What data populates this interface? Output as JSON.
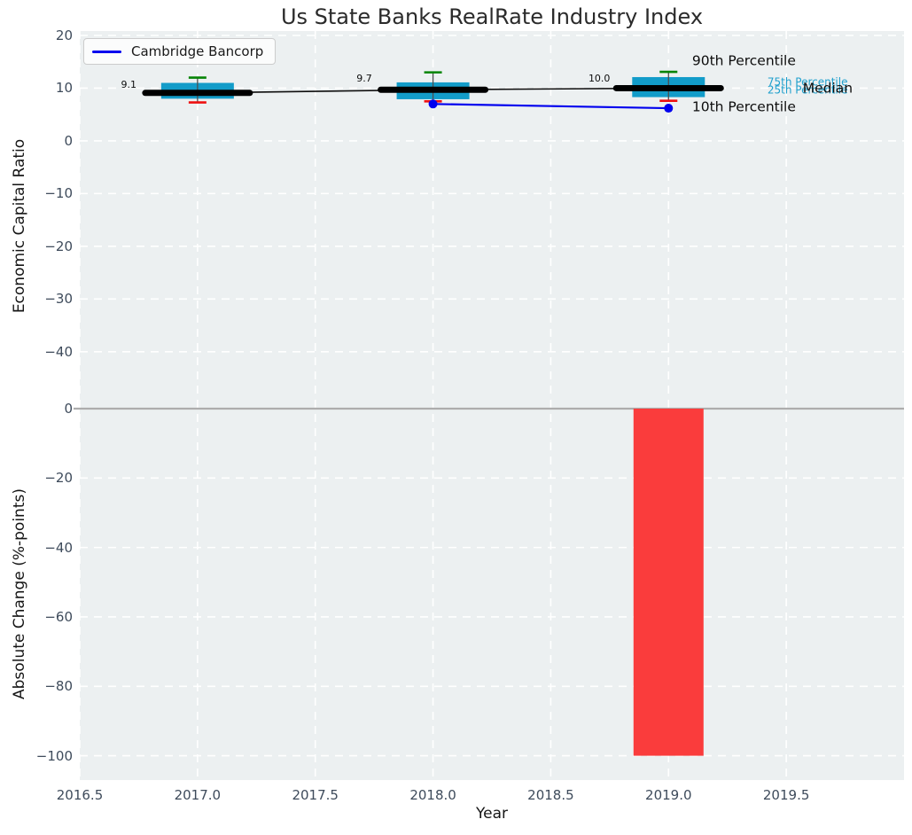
{
  "title": "Us State Banks RealRate Industry Index",
  "legend": {
    "label": "Cambridge Bancorp",
    "line_color": "#0000ee"
  },
  "colors": {
    "plot_bg": "#ecf0f1",
    "grid": "#ffffff",
    "tick_label": "#3e4b5b",
    "box_fill": "#129cc9",
    "p90_cap": "#068406",
    "p10_cap": "#ee1111",
    "median": "#000000",
    "series_line": "#0000ee",
    "bar_fill": "#fa3c3c",
    "zero_line": "#adadad",
    "annotation_black": "#0d0d0d",
    "annotation_cyan": "#1fa0cd"
  },
  "chart_data": {
    "type": "boxplot+line over bar, shared x-axis",
    "x_axis": {
      "label": "Year",
      "lim": [
        2016.5,
        2020.0
      ],
      "tick_values": [
        2016.5,
        2017.0,
        2017.5,
        2018.0,
        2018.5,
        2019.0,
        2019.5
      ],
      "tick_labels": [
        "2016.5",
        "2017.0",
        "2017.5",
        "2018.0",
        "2018.5",
        "2019.0",
        "2019.5"
      ],
      "grid": "white dashed"
    },
    "top": {
      "type": "boxplot+line",
      "ylabel": "Economic Capital Ratio",
      "ylim": [
        -50.8,
        20.84
      ],
      "ytick_values": [
        20,
        10,
        0,
        -10,
        -20,
        -30,
        -40
      ],
      "ytick_labels": [
        "20",
        "10",
        "0",
        "−10",
        "−20",
        "−30",
        "−40"
      ],
      "boxes": [
        {
          "x": 2017,
          "p10": 7.3,
          "p25": 8.0,
          "median": 9.1,
          "p75": 11.0,
          "p90": 12.0
        },
        {
          "x": 2018,
          "p10": 7.5,
          "p25": 7.9,
          "median": 9.7,
          "p75": 11.1,
          "p90": 13.0
        },
        {
          "x": 2019,
          "p10": 7.6,
          "p25": 8.3,
          "median": 10.0,
          "p75": 12.1,
          "p90": 13.1
        }
      ],
      "series": [
        {
          "name": "Cambridge Bancorp",
          "color": "#0000ee",
          "points": [
            {
              "x": 2018,
              "y": 7.0
            },
            {
              "x": 2019,
              "y": 6.2
            }
          ]
        }
      ],
      "annotations": [
        {
          "text": "9.1",
          "x": 2016.675,
          "y": 10.5,
          "color": "#0d0d0d",
          "size": 11
        },
        {
          "text": "9.7",
          "x": 2017.675,
          "y": 11.75,
          "color": "#0d0d0d",
          "size": 11
        },
        {
          "text": "10.0",
          "x": 2018.66,
          "y": 11.75,
          "color": "#0d0d0d",
          "size": 11
        },
        {
          "text": "90th Percentile",
          "x": 2019.1,
          "y": 15.1,
          "color": "#0d0d0d",
          "size": 15.5
        },
        {
          "text": "75th Percentile",
          "x": 2019.42,
          "y": 11.1,
          "color": "#1fa0cd",
          "size": 12
        },
        {
          "text": "25th Percentile",
          "x": 2019.42,
          "y": 9.65,
          "color": "#1fa0cd",
          "size": 12
        },
        {
          "text": "Median",
          "x": 2019.57,
          "y": 9.9,
          "color": "#0d0d0d",
          "size": 15.5
        },
        {
          "text": "10th Percentile",
          "x": 2019.1,
          "y": 6.4,
          "color": "#0d0d0d",
          "size": 15.5
        }
      ]
    },
    "bottom": {
      "type": "bar",
      "ylabel": "Absolute Change (%-points)",
      "ylim": [
        -107,
        0
      ],
      "ytick_values": [
        0,
        -20,
        -40,
        -60,
        -80,
        -100
      ],
      "ytick_labels": [
        "0",
        "−20",
        "−40",
        "−60",
        "−80",
        "−100"
      ],
      "bars": [
        {
          "x": 2019,
          "value": -100
        }
      ]
    }
  }
}
